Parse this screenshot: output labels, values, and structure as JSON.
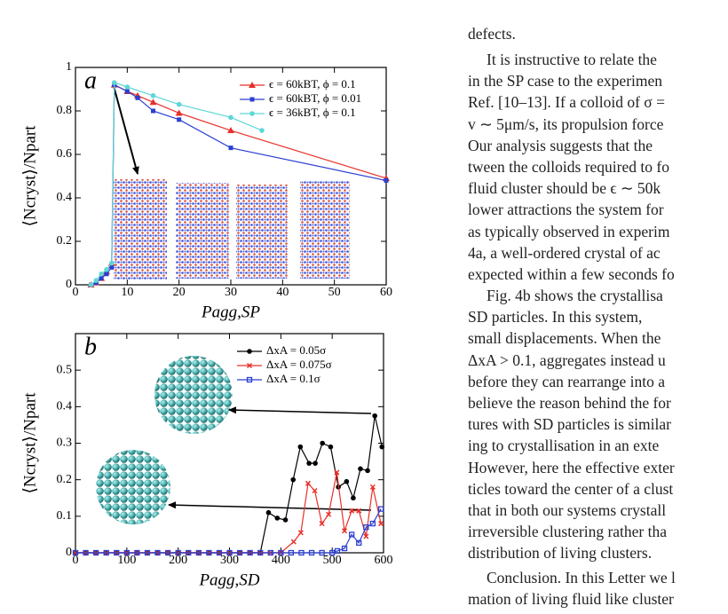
{
  "chart_data": [
    {
      "type": "line",
      "annotation": "a",
      "x_label": "Pagg,SP",
      "y_label": "⟨Ncryst⟩/Npart",
      "xlim": [
        0,
        60
      ],
      "xticks": [
        0,
        10,
        20,
        30,
        40,
        50,
        60
      ],
      "ylim": [
        0,
        1
      ],
      "yticks": [
        0,
        0.2,
        0.4,
        0.6,
        0.8,
        1
      ],
      "legend": "upper right",
      "series": [
        {
          "name": "ϵ = 60kBT, ϕ = 0.1",
          "color": "#e8302a",
          "marker": "triangle",
          "x": [
            3,
            4,
            5,
            6,
            7,
            7.5,
            10,
            12,
            15,
            20,
            30,
            60
          ],
          "values": [
            0,
            0.01,
            0.03,
            0.06,
            0.1,
            0.92,
            0.89,
            0.87,
            0.84,
            0.79,
            0.71,
            0.49
          ]
        },
        {
          "name": "ϵ = 60kBT, ϕ = 0.01",
          "color": "#2c3fd1",
          "marker": "square",
          "x": [
            3,
            4,
            5,
            6,
            7,
            7.5,
            10,
            12,
            15,
            20,
            30,
            60
          ],
          "values": [
            0,
            0.01,
            0.03,
            0.05,
            0.08,
            0.92,
            0.89,
            0.86,
            0.8,
            0.76,
            0.63,
            0.48
          ]
        },
        {
          "name": "ϵ = 36kBT, ϕ = 0.1",
          "color": "#5fd6d6",
          "marker": "circle",
          "x": [
            3,
            4,
            5,
            6,
            7,
            7.5,
            10,
            15,
            20,
            30,
            36
          ],
          "values": [
            0,
            0.02,
            0.05,
            0.07,
            0.1,
            0.93,
            0.91,
            0.87,
            0.83,
            0.77,
            0.71
          ]
        }
      ]
    },
    {
      "type": "line",
      "annotation": "b",
      "x_label": "Pagg,SD",
      "y_label": "⟨Ncryst⟩/Npart",
      "xlim": [
        0,
        600
      ],
      "xticks": [
        0,
        100,
        200,
        300,
        400,
        500,
        600
      ],
      "ylim": [
        0,
        0.6
      ],
      "yticks": [
        0,
        0.1,
        0.2,
        0.3,
        0.4,
        0.5
      ],
      "legend": "upper right",
      "series": [
        {
          "name": "ΔxA = 0.05σ",
          "color": "#000000",
          "marker": "circle",
          "x": [
            0,
            20,
            40,
            60,
            80,
            100,
            120,
            140,
            160,
            180,
            200,
            220,
            240,
            260,
            280,
            300,
            320,
            340,
            360,
            376,
            393,
            409,
            424,
            438,
            455,
            467,
            481,
            497,
            512,
            528,
            541,
            555,
            569,
            583,
            597
          ],
          "values": [
            0,
            0,
            0,
            0,
            0,
            0,
            0,
            0,
            0,
            0,
            0,
            0,
            0,
            0,
            0,
            0,
            0,
            0,
            0,
            0.11,
            0.095,
            0.09,
            0.2,
            0.29,
            0.245,
            0.245,
            0.3,
            0.29,
            0.18,
            0.195,
            0.15,
            0.23,
            0.225,
            0.375,
            0.29
          ]
        },
        {
          "name": "ΔxA = 0.075σ",
          "color": "#e8302a",
          "marker": "x",
          "x": [
            0,
            20,
            40,
            60,
            80,
            100,
            120,
            140,
            160,
            180,
            200,
            220,
            240,
            260,
            280,
            300,
            320,
            340,
            360,
            380,
            400,
            425,
            439,
            453,
            466,
            480,
            493,
            509,
            524,
            538,
            552,
            566,
            579,
            595
          ],
          "values": [
            0,
            0,
            0,
            0,
            0,
            0,
            0,
            0,
            0,
            0,
            0,
            0,
            0,
            0,
            0,
            0,
            0,
            0,
            0,
            0,
            0,
            0.03,
            0.055,
            0.19,
            0.17,
            0.08,
            0.105,
            0.22,
            0.06,
            0.115,
            0.115,
            0.045,
            0.18,
            0.08
          ]
        },
        {
          "name": "ΔxA = 0.1σ",
          "color": "#2c3fd1",
          "marker": "square-open",
          "x": [
            0,
            20,
            40,
            60,
            80,
            100,
            120,
            140,
            160,
            180,
            200,
            220,
            240,
            260,
            280,
            300,
            320,
            340,
            360,
            380,
            400,
            420,
            440,
            460,
            480,
            500,
            510,
            524,
            538,
            552,
            566,
            579,
            595
          ],
          "values": [
            0,
            0,
            0,
            0,
            0,
            0,
            0,
            0,
            0,
            0,
            0,
            0,
            0,
            0,
            0,
            0,
            0,
            0,
            0,
            0,
            0,
            0,
            0,
            0,
            0,
            0,
            0.005,
            0.012,
            0.05,
            0.027,
            0.07,
            0.08,
            0.12
          ]
        }
      ]
    }
  ],
  "text": {
    "top": "defects.",
    "paragraphs": [
      [
        "It is instructive to relate the",
        "in the SP case to the experimen",
        "Ref. [10–13]. If a colloid of σ =",
        "v ∼ 5μm/s, its propulsion force",
        "Our analysis suggests that the",
        "tween the colloids required to fo",
        "fluid cluster should be ϵ ∼ 50k",
        "lower attractions the system for",
        "as typically observed in experim",
        "4a, a well-ordered crystal of ac",
        "expected within a few seconds fo"
      ],
      [
        "Fig. 4b shows the crystallisa",
        "SD particles. In this system,",
        "small displacements. When the",
        "ΔxA > 0.1, aggregates instead u",
        "before they can rearrange into a",
        "believe the reason behind the for",
        "tures with SD particles is similar",
        "ing to crystallisation in an exte",
        "However, here the effective exter",
        "ticles toward the center of a clust",
        "that in both our systems crystall",
        "irreversible clustering rather tha",
        "distribution of living clusters."
      ],
      [
        "Conclusion. In this Letter we l",
        "mation of living fluid like cluster"
      ]
    ]
  }
}
